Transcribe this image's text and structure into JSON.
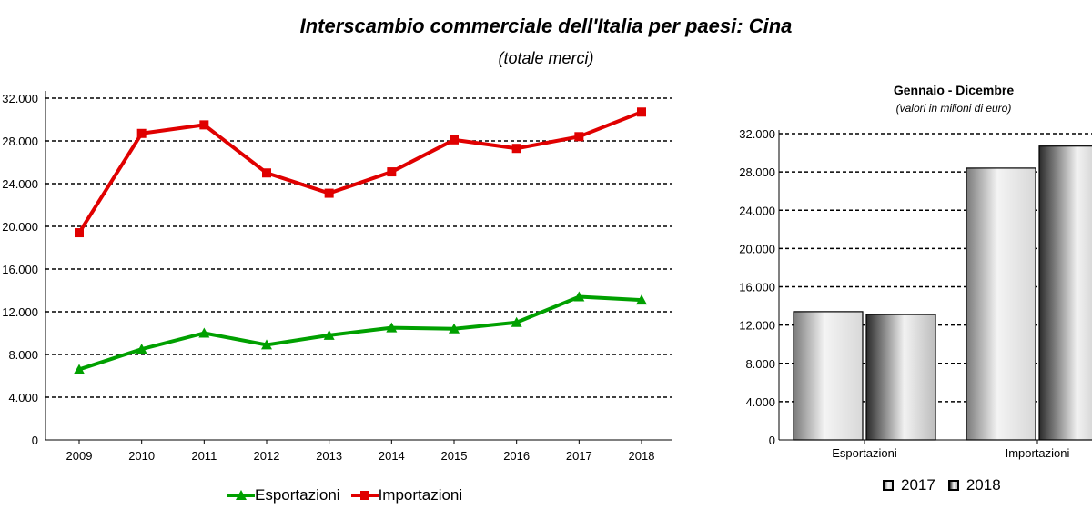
{
  "title": "Interscambio commerciale dell'Italia per paesi: Cina",
  "subtitle": "(totale merci)",
  "chart_data": [
    {
      "type": "line",
      "x": [
        "2009",
        "2010",
        "2011",
        "2012",
        "2013",
        "2014",
        "2015",
        "2016",
        "2017",
        "2018"
      ],
      "ylim": [
        0,
        32000
      ],
      "yticks": [
        "0",
        "4.000",
        "8.000",
        "12.000",
        "16.000",
        "20.000",
        "24.000",
        "28.000",
        "32.000"
      ],
      "grid": true,
      "legend_position": "bottom",
      "series": [
        {
          "name": "Esportazioni",
          "color": "#00a000",
          "marker": "triangle",
          "values": [
            6600,
            8500,
            10000,
            8900,
            9800,
            10500,
            10400,
            11000,
            13400,
            13100
          ]
        },
        {
          "name": "Importazioni",
          "color": "#e00000",
          "marker": "square",
          "values": [
            19400,
            28700,
            29500,
            25000,
            23100,
            25100,
            28100,
            27300,
            28400,
            30700
          ]
        }
      ]
    },
    {
      "type": "bar",
      "title": "Gennaio - Dicembre",
      "subtitle": "(valori in milioni di euro)",
      "categories": [
        "Esportazioni",
        "Importazioni"
      ],
      "ylim": [
        0,
        32000
      ],
      "yticks": [
        "0",
        "4.000",
        "8.000",
        "12.000",
        "16.000",
        "20.000",
        "24.000",
        "28.000",
        "32.000"
      ],
      "grid": true,
      "legend_position": "bottom",
      "series": [
        {
          "name": "2017",
          "values": [
            13400,
            28400
          ]
        },
        {
          "name": "2018",
          "values": [
            13100,
            30700
          ]
        }
      ]
    }
  ]
}
